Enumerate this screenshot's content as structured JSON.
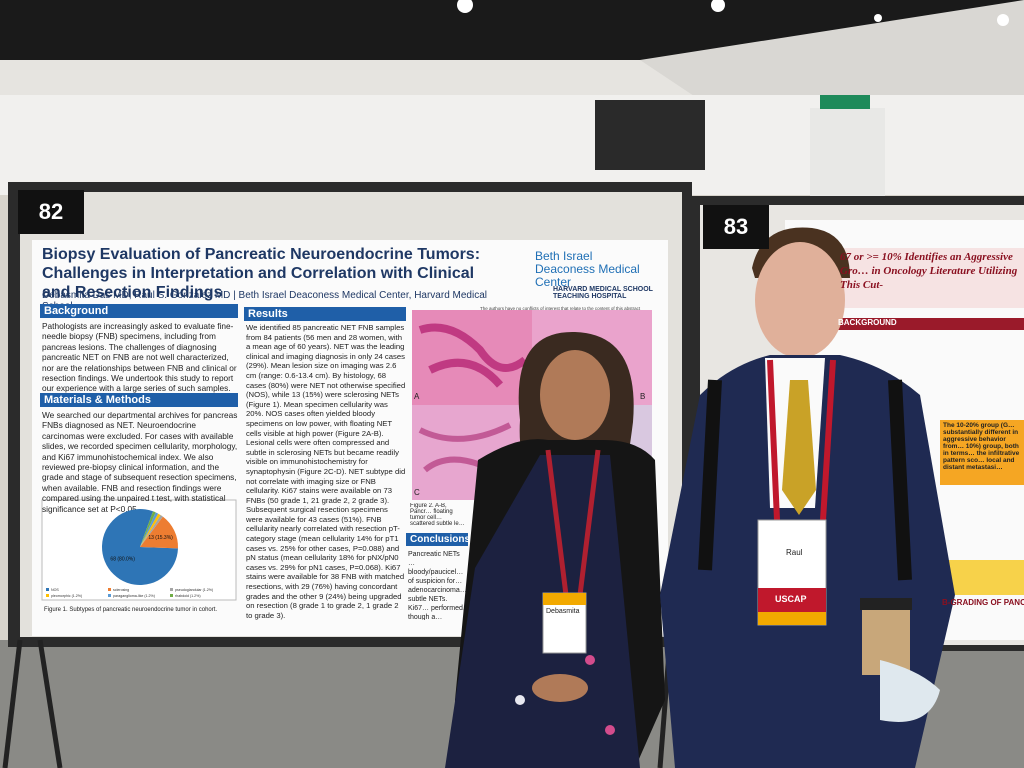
{
  "booths": [
    "82",
    "83"
  ],
  "poster": {
    "title": "Biopsy Evaluation of Pancreatic Neuroendocrine Tumors: Challenges in Interpretation and Correlation with Clinical and Resection Findings",
    "authors": "Debasmita Das MD, Raul S. Gonzalez  MD | Beth Israel Deaconess Medical Center, Harvard Medical School",
    "logo_main": "Beth Israel Deaconess Medical Center",
    "logo_sub": "HARVARD MEDICAL SCHOOL TEACHING HOSPITAL",
    "disclosure": "The authors have no conflicts of interest that relate to the content of this abstract",
    "sections": [
      {
        "heading": "Background",
        "text": "Pathologists are increasingly asked to evaluate fine-needle biopsy (FNB) specimens, including from pancreas lesions. The challenges of diagnosing pancreatic NET on FNB are not well characterized, nor are the relationships between FNB and clinical or resection findings. We undertook this study to report our experience with a large series of such samples."
      },
      {
        "heading": "Materials & Methods",
        "text": "We searched our departmental archives for pancreas FNBs diagnosed as NET. Neuroendocrine carcinomas were excluded. For cases with available slides, we recorded specimen cellularity, morphology, and Ki67 immunohistochemical index. We also reviewed pre-biopsy clinical information, and the grade and stage of subsequent resection specimens, when available. FNB and resection findings were compared using the unpaired t test, with statistical significance set at P<0.05."
      },
      {
        "heading": "Results",
        "text": "We identified 85 pancreatic NET FNB samples from 84 patients (56 men and 28 women, with a mean age of 60 years). NET was the leading clinical and imaging diagnosis in only 24 cases (29%). Mean lesion size on imaging was 2.6 cm (range: 0.6-13.4 cm). By histology, 68 cases (80%) were NET not otherwise specified (NOS), while 13 (15%) were sclerosing NETs (Figure 1). Mean specimen cellularity was 20%. NOS cases often yielded bloody specimens on low power, with floating NET cells visible at high power (Figure 2A-B). Lesional cells were often compressed and subtle in sclerosing NETs but became readily visible on immunohistochemistry for synaptophysin (Figure 2C-D). NET subtype did not correlate with imaging size or FNB cellularity. Ki67 stains were available on 73 FNBs (50 grade 1, 21 grade 2, 2 grade 3). Subsequent surgical resection specimens were available for 43 cases (51%). FNB cellularity nearly correlated with resection pT-category stage (mean cellularity 14% for pT1 cases vs. 25% for other cases, P=0.088) and pN status (mean cellularity 18% for pNX/pN0 cases vs. 29% for pN1 cases, P=0.068). Ki67 stains were available for 38 FNB with matched resections, with 29 (76%) having concordant grades and the other 9 (24%) being upgraded on resection (8 grade 1 to grade 2, 1 grade 2 to grade 3)."
      },
      {
        "heading": "Conclusions",
        "text": "Pancreatic NETs … bloody/paucicel… of suspicion for… adenocarcinoma… subtle NETs. Ki67… performed, though a… resection."
      }
    ],
    "figure": {
      "type": "pie",
      "categories": [
        "NOS",
        "sclerosing",
        "pseudoglandular (1.2%)",
        "pleomorphic (1.2%)",
        "paraganglioma-like (1.2%)",
        "rhabdoid (1.2%)"
      ],
      "values": [
        68,
        13,
        1,
        1,
        1,
        1
      ],
      "value_labels": [
        "68 (80.0%)",
        "13 (15.3%)",
        null,
        null,
        null,
        null
      ],
      "colors": [
        "#2e75b6",
        "#ed7d31",
        "#a5a5a5",
        "#ffc000",
        "#5b9bd5",
        "#70ad47"
      ]
    },
    "figure1_caption": "Figure 1. Subtypes of pancreatic neuroendocrine tumor in cohort.",
    "figure2_caption": "Figure 2. A-B, Pancr… floating tumor cell… scattered subtle le…",
    "panels": [
      "A",
      "B",
      "C"
    ]
  },
  "right_poster": {
    "title": "67 or >= 10% Identifies an Aggressive Gro… in Oncology Literature Utilizing This Cut-",
    "heading": "BACKGROUND",
    "highlight": "The 10-20% group (G… substantially different in aggressive behavior from… 10%) group, both in terms… the infiltrative pattern sco… local and distant metastasi…",
    "footer": "B-GRADING OF PANC"
  },
  "badges": {
    "left": "Debasmita",
    "right": "Raul",
    "lanyard": "USCAP"
  }
}
